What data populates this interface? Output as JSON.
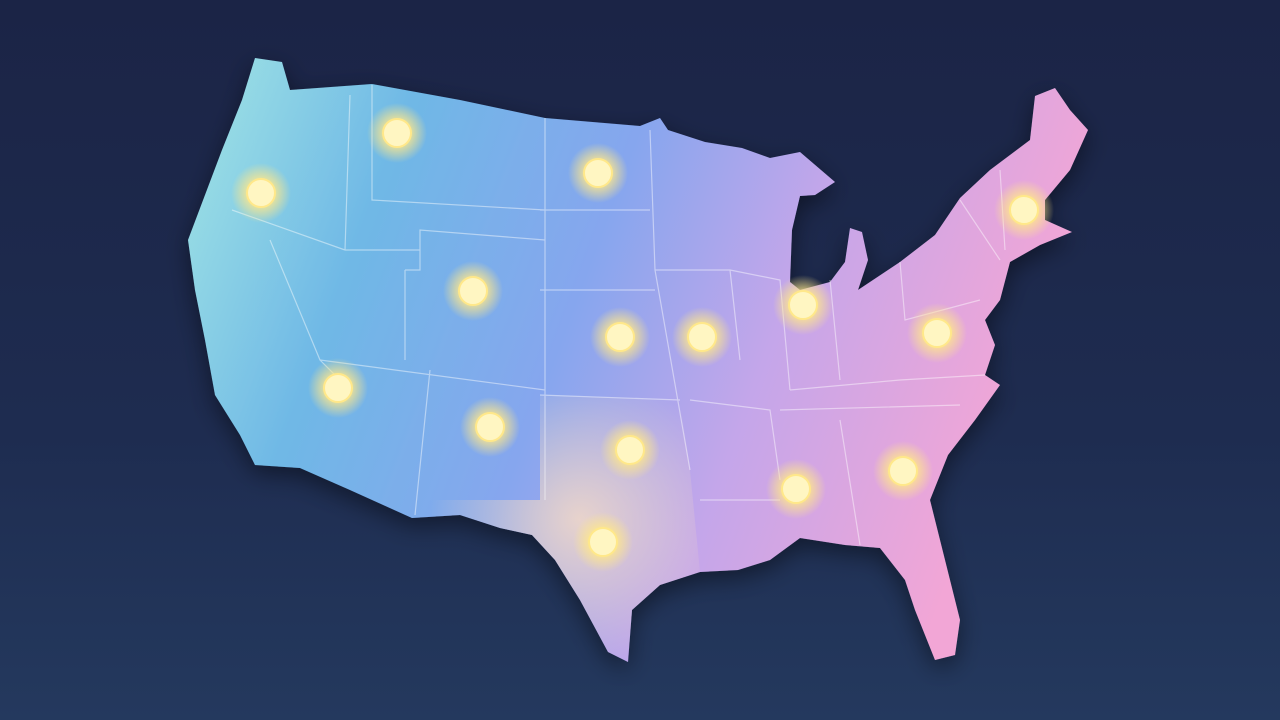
{
  "map": {
    "region": "contiguous-united-states",
    "colors": {
      "background_top": "#1b2446",
      "background_bottom": "#24395e",
      "west": "#a2e6e4",
      "mountain": "#6fb8e6",
      "central": "#86a6ee",
      "east": "#c4a6ea",
      "southeast": "#f2a6d6",
      "south_central": "#f0d8c8",
      "border": "#ffffff",
      "marker": "#fff6c2",
      "marker_glow": "#ffe88a"
    },
    "marker_icon": "glowing-dot-icon"
  }
}
